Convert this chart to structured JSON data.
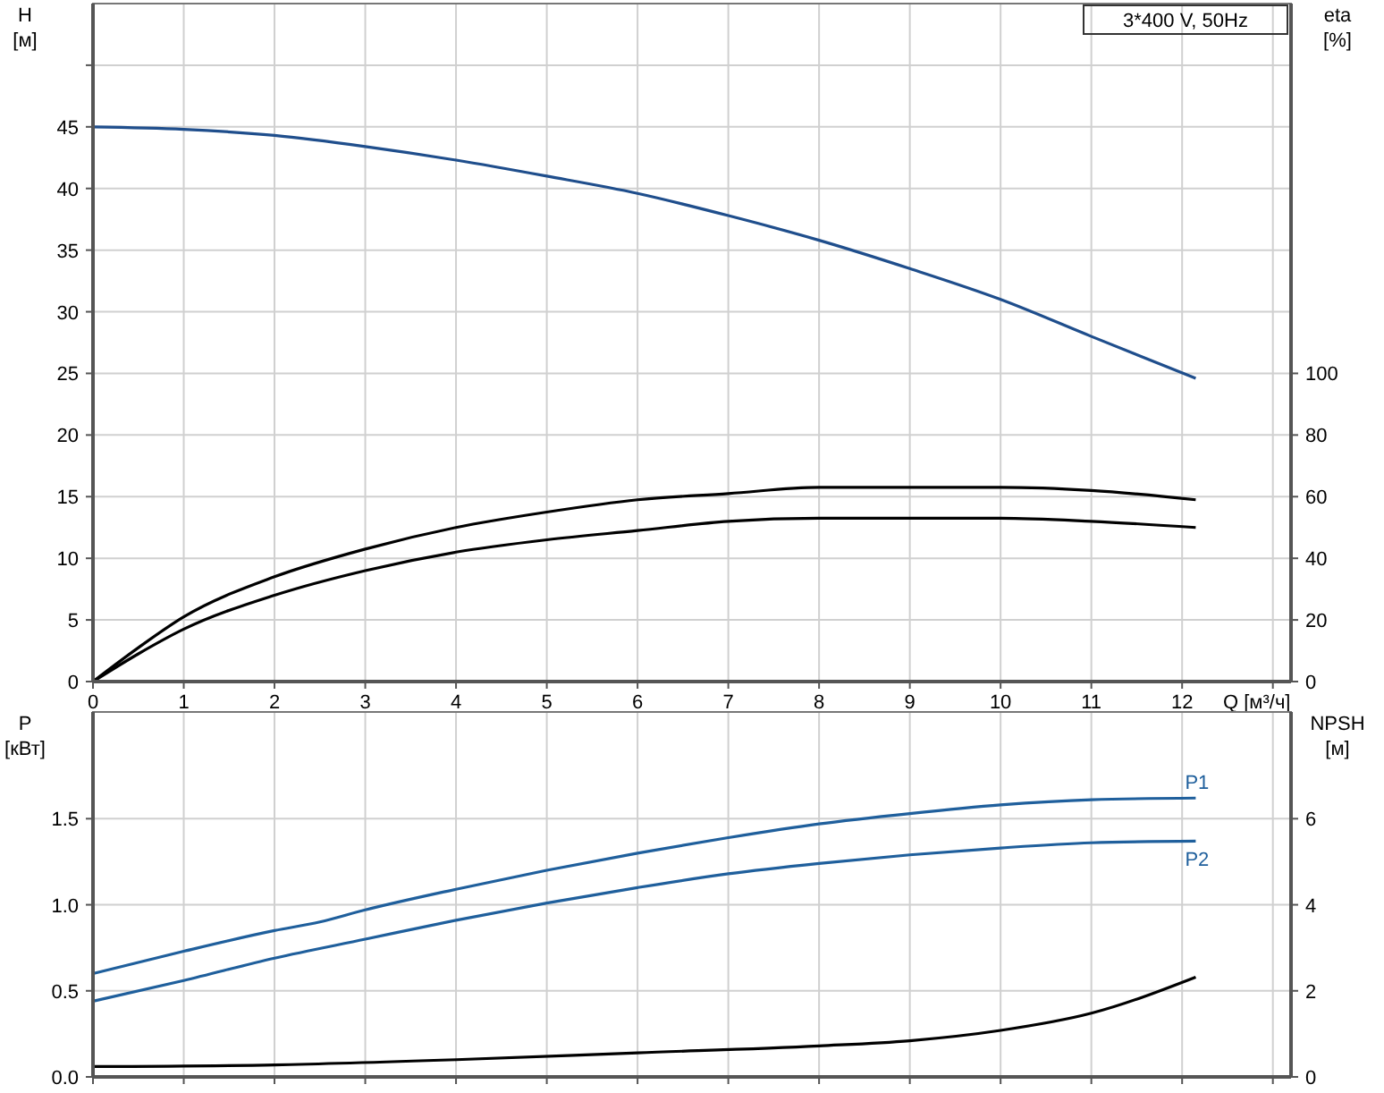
{
  "chart_data": [
    {
      "type": "line",
      "title": "3*400 V, 50Hz",
      "xlabel": "Q [м³/ч]",
      "ylabel": "H [м]",
      "y2label": "eta [%]",
      "grid": true,
      "marker": "none",
      "xlim": [
        0,
        13.2
      ],
      "ylim": [
        0,
        55
      ],
      "y2lim": [
        0,
        220
      ],
      "xticks": [
        0,
        1,
        2,
        3,
        4,
        5,
        6,
        7,
        8,
        9,
        10,
        11,
        12,
        {
          "value": 13,
          "label": null
        }
      ],
      "yticks": [
        0,
        5,
        10,
        15,
        20,
        25,
        30,
        35,
        40,
        45,
        {
          "value": 50,
          "label": null
        }
      ],
      "y2ticks": [
        0,
        20,
        40,
        60,
        80,
        100
      ],
      "series": [
        {
          "color": "#1f4e8c",
          "x": [
            0,
            1,
            2,
            3,
            4,
            5,
            6,
            7,
            8,
            9,
            10,
            11,
            12.15
          ],
          "values": [
            45,
            44.8,
            44.3,
            43.4,
            42.3,
            41.0,
            39.6,
            37.8,
            35.8,
            33.5,
            31.0,
            28.0,
            24.6
          ]
        },
        {
          "color": "#000000",
          "axis": "y2",
          "x": [
            0,
            0.5,
            1,
            2,
            3,
            4,
            5,
            6,
            7,
            8,
            9,
            10,
            11,
            12.15
          ],
          "values": [
            0,
            11,
            21,
            34,
            43,
            50,
            55,
            59,
            61,
            63,
            63,
            63,
            62,
            59
          ]
        },
        {
          "color": "#000000",
          "axis": "y2",
          "x": [
            0,
            0.5,
            1,
            2,
            3,
            4,
            5,
            6,
            7,
            8,
            9,
            10,
            11,
            12.15
          ],
          "values": [
            0,
            9,
            17,
            28,
            36,
            42,
            46,
            49,
            52,
            53,
            53,
            53,
            52,
            50
          ]
        }
      ]
    },
    {
      "type": "line",
      "ylabel": "P [кВт]",
      "y2label": "NPSH [м]",
      "grid": true,
      "marker": "none",
      "tick_labels": "y",
      "xlim": [
        0,
        13.2
      ],
      "ylim": [
        0,
        2.12
      ],
      "y2lim": [
        0,
        8.48
      ],
      "xticks": [
        0,
        1,
        2,
        3,
        4,
        5,
        6,
        7,
        8,
        9,
        10,
        11,
        12,
        13
      ],
      "yticks": [
        {
          "value": 0,
          "label": "0.0"
        },
        0.5,
        {
          "value": 1,
          "label": "1.0"
        },
        1.5
      ],
      "y2ticks": [
        0,
        2,
        4,
        6
      ],
      "series": [
        {
          "name": "P1",
          "color": "#1f5f9c",
          "x": [
            0,
            1,
            2,
            2.5,
            3,
            4,
            5,
            6,
            7,
            8,
            9,
            10,
            11,
            12.15
          ],
          "values": [
            0.6,
            0.73,
            0.85,
            0.9,
            0.97,
            1.09,
            1.2,
            1.3,
            1.39,
            1.47,
            1.53,
            1.58,
            1.61,
            1.62
          ]
        },
        {
          "name": "P2",
          "color": "#1f5f9c",
          "x": [
            0,
            1,
            2,
            3,
            4,
            5,
            6,
            7,
            8,
            9,
            10,
            11,
            12.15
          ],
          "values": [
            0.44,
            0.56,
            0.69,
            0.8,
            0.91,
            1.01,
            1.1,
            1.18,
            1.24,
            1.29,
            1.33,
            1.36,
            1.37
          ]
        },
        {
          "color": "#000000",
          "axis": "y2",
          "x": [
            0,
            2,
            4,
            6,
            8,
            9,
            10,
            11,
            12.15
          ],
          "values": [
            0.24,
            0.28,
            0.4,
            0.56,
            0.72,
            0.84,
            1.08,
            1.48,
            2.32
          ]
        }
      ]
    }
  ]
}
